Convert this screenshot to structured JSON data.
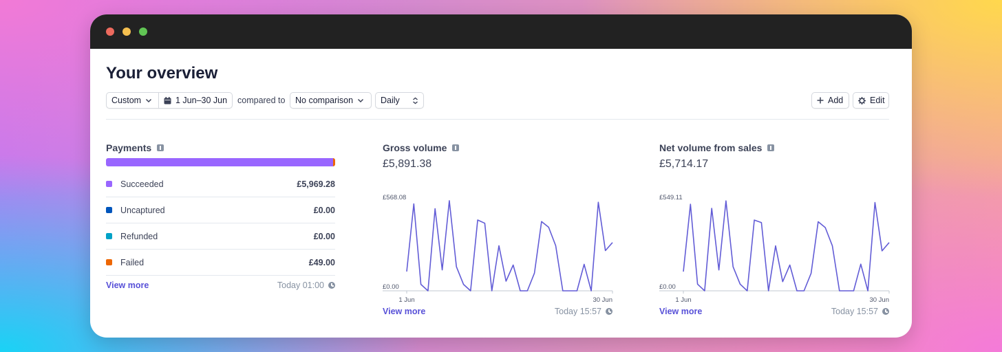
{
  "window": {
    "controls": {
      "close_color": "#ed6a5e",
      "minimize_color": "#f5bf4f",
      "maximize_color": "#61c554"
    }
  },
  "page": {
    "title": "Your overview"
  },
  "toolbar": {
    "range_preset": "Custom",
    "date_range": "1 Jun–30 Jun",
    "compared_to": "compared to",
    "comparison": "No comparison",
    "interval": "Daily",
    "add_label": "Add",
    "edit_label": "Edit"
  },
  "payments": {
    "title": "Payments",
    "rows": [
      {
        "label": "Succeeded",
        "value": "£5,969.28",
        "color": "#9966ff"
      },
      {
        "label": "Uncaptured",
        "value": "£0.00",
        "color": "#0055bc"
      },
      {
        "label": "Refunded",
        "value": "£0.00",
        "color": "#00a2c7"
      },
      {
        "label": "Failed",
        "value": "£49.00",
        "color": "#ed6704"
      }
    ],
    "bar_shares": [
      0.9919,
      0,
      0,
      0.0081
    ],
    "view_more": "View more",
    "updated": "Today 01:00"
  },
  "gross_volume": {
    "title": "Gross volume",
    "amount": "£5,891.38",
    "view_more": "View more",
    "updated": "Today 15:57"
  },
  "net_volume": {
    "title": "Net volume from sales",
    "amount": "£5,714.17",
    "view_more": "View more",
    "updated": "Today 15:57"
  },
  "chart_data": [
    {
      "type": "line",
      "x_ticks": [
        "1 Jun",
        "30 Jun"
      ],
      "y_tick_labels": [
        "£568.08",
        "£0.00"
      ],
      "ylim": [
        0,
        568.08
      ],
      "color": "#625cd6",
      "values": [
        120,
        540,
        40,
        0,
        510,
        130,
        560,
        150,
        40,
        0,
        440,
        420,
        0,
        280,
        60,
        160,
        0,
        0,
        110,
        430,
        395,
        280,
        0,
        0,
        0,
        165,
        0,
        550,
        250,
        300
      ]
    },
    {
      "type": "line",
      "x_ticks": [
        "1 Jun",
        "30 Jun"
      ],
      "y_tick_labels": [
        "£549.11",
        "£0.00"
      ],
      "ylim": [
        0,
        549.11
      ],
      "color": "#625cd6",
      "values": [
        115,
        520,
        40,
        0,
        495,
        125,
        540,
        145,
        40,
        0,
        425,
        410,
        0,
        270,
        55,
        155,
        0,
        0,
        105,
        415,
        380,
        270,
        0,
        0,
        0,
        160,
        0,
        530,
        240,
        290
      ]
    }
  ]
}
